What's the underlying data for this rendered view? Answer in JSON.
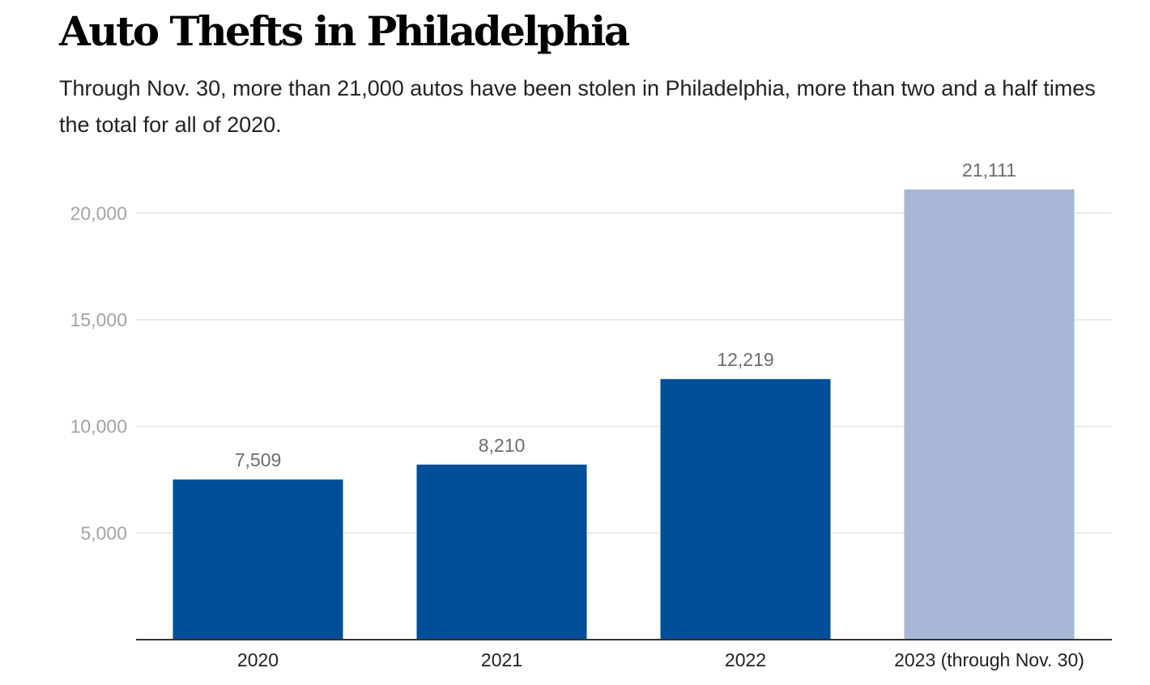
{
  "chart_data": {
    "type": "bar",
    "title": "Auto Thefts in Philadelphia",
    "subtitle": "Through Nov. 30, more than 21,000 autos have been stolen in Philadelphia, more than two and a half times the total for all of 2020.",
    "categories": [
      "2020",
      "2021",
      "2022",
      "2023 (through Nov. 30)"
    ],
    "values": [
      7509,
      8210,
      12219,
      21111
    ],
    "value_labels": [
      "7,509",
      "8,210",
      "12,219",
      "21,111"
    ],
    "bar_colors": [
      "#004f98",
      "#004f98",
      "#004f98",
      "#a7b5d7"
    ],
    "yticks": [
      5000,
      10000,
      15000,
      20000
    ],
    "ytick_labels": [
      "5,000",
      "10,000",
      "15,000",
      "20,000"
    ],
    "ylim": [
      0,
      21111
    ],
    "xlabel": "",
    "ylabel": "",
    "grid": true,
    "legend": "none"
  }
}
